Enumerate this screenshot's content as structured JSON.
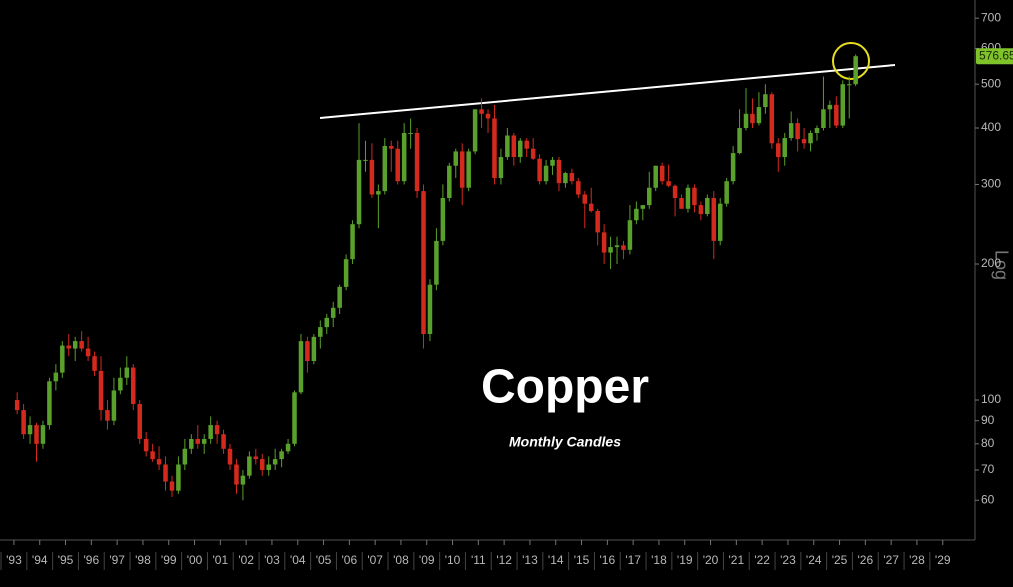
{
  "chart_data": {
    "type": "candlestick",
    "title": "Copper",
    "subtitle": "Monthly Candles",
    "y_axis_label": "Log",
    "log_scale": true,
    "grid": false,
    "up_color": "#5aa02c",
    "down_color": "#d42a1e",
    "xlim": [
      1992.46,
      2030.25
    ],
    "ylim": [
      49,
      768
    ],
    "xticks": [
      {
        "value": 1993,
        "label": "'93"
      },
      {
        "value": 1994,
        "label": "'94"
      },
      {
        "value": 1995,
        "label": "'95"
      },
      {
        "value": 1996,
        "label": "'96"
      },
      {
        "value": 1997,
        "label": "'97"
      },
      {
        "value": 1998,
        "label": "'98"
      },
      {
        "value": 1999,
        "label": "'99"
      },
      {
        "value": 2000,
        "label": "'00"
      },
      {
        "value": 2001,
        "label": "'01"
      },
      {
        "value": 2002,
        "label": "'02"
      },
      {
        "value": 2003,
        "label": "'03"
      },
      {
        "value": 2004,
        "label": "'04"
      },
      {
        "value": 2005,
        "label": "'05"
      },
      {
        "value": 2006,
        "label": "'06"
      },
      {
        "value": 2007,
        "label": "'07"
      },
      {
        "value": 2008,
        "label": "'08"
      },
      {
        "value": 2009,
        "label": "'09"
      },
      {
        "value": 2010,
        "label": "'10"
      },
      {
        "value": 2011,
        "label": "'11"
      },
      {
        "value": 2012,
        "label": "'12"
      },
      {
        "value": 2013,
        "label": "'13"
      },
      {
        "value": 2014,
        "label": "'14"
      },
      {
        "value": 2015,
        "label": "'15"
      },
      {
        "value": 2016,
        "label": "'16"
      },
      {
        "value": 2017,
        "label": "'17"
      },
      {
        "value": 2018,
        "label": "'18"
      },
      {
        "value": 2019,
        "label": "'19"
      },
      {
        "value": 2020,
        "label": "'20"
      },
      {
        "value": 2021,
        "label": "'21"
      },
      {
        "value": 2022,
        "label": "'22"
      },
      {
        "value": 2023,
        "label": "'23"
      },
      {
        "value": 2024,
        "label": "'24"
      },
      {
        "value": 2025,
        "label": "'25"
      },
      {
        "value": 2026,
        "label": "'26"
      },
      {
        "value": 2027,
        "label": "'27"
      },
      {
        "value": 2028,
        "label": "'28"
      },
      {
        "value": 2029,
        "label": "'29"
      }
    ],
    "yticks": [
      60,
      70,
      80,
      90,
      100,
      200,
      300,
      400,
      500,
      600,
      700
    ],
    "x": [
      1993.125,
      1993.375,
      1993.625,
      1993.875,
      1994.125,
      1994.375,
      1994.625,
      1994.875,
      1995.125,
      1995.375,
      1995.625,
      1995.875,
      1996.125,
      1996.375,
      1996.625,
      1996.875,
      1997.125,
      1997.375,
      1997.625,
      1997.875,
      1998.125,
      1998.375,
      1998.625,
      1998.875,
      1999.125,
      1999.375,
      1999.625,
      1999.875,
      2000.125,
      2000.375,
      2000.625,
      2000.875,
      2001.125,
      2001.375,
      2001.625,
      2001.875,
      2002.125,
      2002.375,
      2002.625,
      2002.875,
      2003.125,
      2003.375,
      2003.625,
      2003.875,
      2004.125,
      2004.375,
      2004.625,
      2004.875,
      2005.125,
      2005.375,
      2005.625,
      2005.875,
      2006.125,
      2006.375,
      2006.625,
      2006.875,
      2007.125,
      2007.375,
      2007.625,
      2007.875,
      2008.125,
      2008.375,
      2008.625,
      2008.875,
      2009.125,
      2009.375,
      2009.625,
      2009.875,
      2010.125,
      2010.375,
      2010.625,
      2010.875,
      2011.125,
      2011.375,
      2011.625,
      2011.875,
      2012.125,
      2012.375,
      2012.625,
      2012.875,
      2013.125,
      2013.375,
      2013.625,
      2013.875,
      2014.125,
      2014.375,
      2014.625,
      2014.875,
      2015.125,
      2015.375,
      2015.625,
      2015.875,
      2016.125,
      2016.375,
      2016.625,
      2016.875,
      2017.125,
      2017.375,
      2017.625,
      2017.875,
      2018.125,
      2018.375,
      2018.625,
      2018.875,
      2019.125,
      2019.375,
      2019.625,
      2019.875,
      2020.125,
      2020.375,
      2020.625,
      2020.875,
      2021.125,
      2021.375,
      2021.625,
      2021.875,
      2022.125,
      2022.375,
      2022.625,
      2022.875,
      2023.125,
      2023.375,
      2023.625,
      2023.875,
      2024.125,
      2024.375,
      2024.625,
      2024.875,
      2025.125,
      2025.375,
      2025.625
    ],
    "ohlc": [
      [
        100,
        104,
        93,
        95
      ],
      [
        95,
        98,
        82,
        84
      ],
      [
        84,
        92,
        80,
        88
      ],
      [
        88,
        89,
        73,
        80
      ],
      [
        80,
        90,
        78,
        88
      ],
      [
        88,
        112,
        86,
        110
      ],
      [
        110,
        120,
        105,
        115
      ],
      [
        115,
        135,
        112,
        132
      ],
      [
        132,
        140,
        125,
        130
      ],
      [
        130,
        138,
        122,
        135
      ],
      [
        135,
        142,
        128,
        130
      ],
      [
        130,
        138,
        122,
        125
      ],
      [
        125,
        128,
        113,
        116
      ],
      [
        116,
        125,
        90,
        95
      ],
      [
        95,
        100,
        86,
        90
      ],
      [
        90,
        112,
        88,
        105
      ],
      [
        105,
        118,
        103,
        112
      ],
      [
        112,
        125,
        108,
        118
      ],
      [
        118,
        120,
        95,
        98
      ],
      [
        98,
        100,
        80,
        82
      ],
      [
        82,
        85,
        75,
        77
      ],
      [
        77,
        80,
        73,
        74
      ],
      [
        74,
        79,
        70,
        72
      ],
      [
        72,
        75,
        63,
        66
      ],
      [
        66,
        68,
        61,
        63
      ],
      [
        63,
        75,
        62,
        72
      ],
      [
        72,
        82,
        70,
        78
      ],
      [
        78,
        84,
        76,
        82
      ],
      [
        82,
        88,
        78,
        80
      ],
      [
        80,
        84,
        76,
        82
      ],
      [
        82,
        92,
        80,
        88
      ],
      [
        88,
        90,
        80,
        84
      ],
      [
        84,
        86,
        76,
        78
      ],
      [
        78,
        80,
        70,
        72
      ],
      [
        72,
        74,
        62,
        65
      ],
      [
        65,
        70,
        60,
        68
      ],
      [
        68,
        77,
        67,
        75
      ],
      [
        75,
        78,
        72,
        74
      ],
      [
        74,
        76,
        68,
        70
      ],
      [
        70,
        75,
        68,
        72
      ],
      [
        72,
        78,
        70,
        74
      ],
      [
        74,
        78,
        71,
        77
      ],
      [
        77,
        82,
        76,
        80
      ],
      [
        80,
        105,
        79,
        104
      ],
      [
        104,
        140,
        103,
        135
      ],
      [
        135,
        138,
        115,
        122
      ],
      [
        122,
        140,
        120,
        138
      ],
      [
        138,
        150,
        130,
        145
      ],
      [
        145,
        155,
        140,
        152
      ],
      [
        152,
        165,
        145,
        160
      ],
      [
        160,
        180,
        155,
        178
      ],
      [
        178,
        210,
        175,
        205
      ],
      [
        205,
        250,
        200,
        245
      ],
      [
        245,
        410,
        240,
        340
      ],
      [
        340,
        375,
        320,
        340
      ],
      [
        340,
        370,
        280,
        285
      ],
      [
        285,
        300,
        240,
        290
      ],
      [
        290,
        380,
        285,
        365
      ],
      [
        365,
        375,
        320,
        360
      ],
      [
        360,
        375,
        300,
        305
      ],
      [
        305,
        410,
        300,
        390
      ],
      [
        390,
        420,
        360,
        390
      ],
      [
        390,
        400,
        280,
        290
      ],
      [
        290,
        300,
        130,
        140
      ],
      [
        140,
        185,
        135,
        180
      ],
      [
        180,
        240,
        175,
        225
      ],
      [
        225,
        300,
        220,
        280
      ],
      [
        280,
        335,
        275,
        330
      ],
      [
        330,
        360,
        310,
        355
      ],
      [
        355,
        370,
        270,
        295
      ],
      [
        295,
        360,
        290,
        355
      ],
      [
        355,
        440,
        350,
        440
      ],
      [
        440,
        465,
        400,
        430
      ],
      [
        430,
        440,
        390,
        420
      ],
      [
        420,
        450,
        300,
        310
      ],
      [
        310,
        360,
        300,
        345
      ],
      [
        345,
        400,
        340,
        385
      ],
      [
        385,
        390,
        330,
        345
      ],
      [
        345,
        380,
        335,
        375
      ],
      [
        375,
        380,
        345,
        360
      ],
      [
        360,
        380,
        340,
        342
      ],
      [
        342,
        350,
        300,
        305
      ],
      [
        305,
        340,
        300,
        330
      ],
      [
        330,
        345,
        315,
        340
      ],
      [
        340,
        345,
        290,
        302
      ],
      [
        302,
        320,
        295,
        318
      ],
      [
        318,
        325,
        300,
        305
      ],
      [
        305,
        310,
        280,
        285
      ],
      [
        285,
        290,
        240,
        272
      ],
      [
        272,
        295,
        260,
        262
      ],
      [
        262,
        265,
        220,
        235
      ],
      [
        235,
        245,
        200,
        212
      ],
      [
        212,
        230,
        195,
        218
      ],
      [
        218,
        230,
        200,
        220
      ],
      [
        220,
        225,
        205,
        215
      ],
      [
        215,
        270,
        210,
        250
      ],
      [
        250,
        275,
        245,
        265
      ],
      [
        265,
        270,
        250,
        270
      ],
      [
        270,
        320,
        265,
        295
      ],
      [
        295,
        330,
        290,
        330
      ],
      [
        330,
        335,
        300,
        305
      ],
      [
        305,
        332,
        296,
        298
      ],
      [
        298,
        300,
        255,
        280
      ],
      [
        280,
        285,
        265,
        265
      ],
      [
        265,
        300,
        260,
        295
      ],
      [
        295,
        300,
        260,
        270
      ],
      [
        270,
        275,
        250,
        258
      ],
      [
        258,
        285,
        255,
        280
      ],
      [
        280,
        290,
        205,
        225
      ],
      [
        225,
        280,
        220,
        272
      ],
      [
        272,
        310,
        268,
        305
      ],
      [
        305,
        365,
        300,
        352
      ],
      [
        352,
        440,
        350,
        400
      ],
      [
        400,
        490,
        395,
        430
      ],
      [
        430,
        465,
        400,
        410
      ],
      [
        410,
        480,
        405,
        445
      ],
      [
        445,
        500,
        430,
        475
      ],
      [
        475,
        480,
        360,
        370
      ],
      [
        370,
        380,
        320,
        345
      ],
      [
        345,
        390,
        330,
        380
      ],
      [
        380,
        435,
        375,
        410
      ],
      [
        410,
        420,
        355,
        378
      ],
      [
        378,
        400,
        360,
        370
      ],
      [
        370,
        395,
        355,
        390
      ],
      [
        390,
        405,
        375,
        400
      ],
      [
        400,
        520,
        395,
        440
      ],
      [
        440,
        460,
        400,
        450
      ],
      [
        450,
        470,
        400,
        405
      ],
      [
        405,
        510,
        400,
        500
      ],
      [
        500,
        520,
        420,
        500
      ],
      [
        500,
        582,
        495,
        576.65
      ]
    ]
  }
}
